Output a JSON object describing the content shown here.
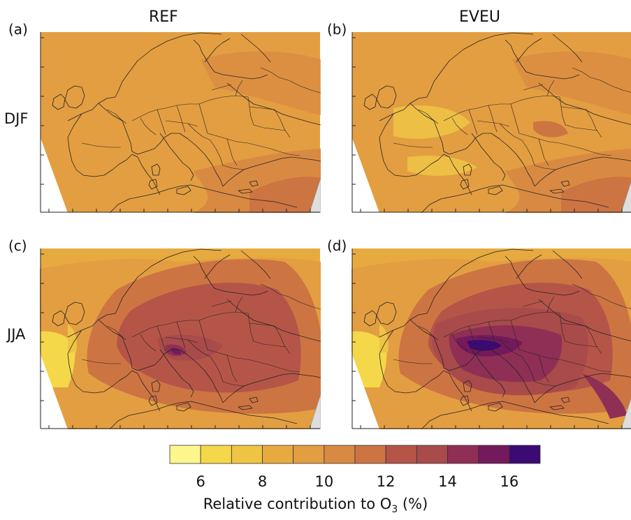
{
  "figure": {
    "columns": [
      "REF",
      "EVEU"
    ],
    "rows": [
      "DJF",
      "JJA"
    ],
    "panels": [
      {
        "label": "(a)",
        "column": "REF",
        "row": "DJF"
      },
      {
        "label": "(b)",
        "column": "EVEU",
        "row": "DJF"
      },
      {
        "label": "(c)",
        "column": "REF",
        "row": "JJA"
      },
      {
        "label": "(d)",
        "column": "EVEU",
        "row": "JJA"
      }
    ]
  },
  "colorbar": {
    "caption_prefix": "Relative contribution to O",
    "caption_sub": "3",
    "caption_suffix": " (%)",
    "tick_labels": [
      "6",
      "8",
      "10",
      "12",
      "14",
      "16"
    ],
    "min": 5,
    "max": 17,
    "colors": [
      "#fdf68c",
      "#f5d74a",
      "#efc445",
      "#e7aa40",
      "#e39e41",
      "#d98a42",
      "#cd7443",
      "#b55548",
      "#a94a4b",
      "#8f2f55",
      "#741a5c",
      "#3b0a72"
    ]
  },
  "colors": {
    "land_outline": "#222222",
    "out_of_domain": "#ffffff",
    "missing": "#dedede"
  }
}
